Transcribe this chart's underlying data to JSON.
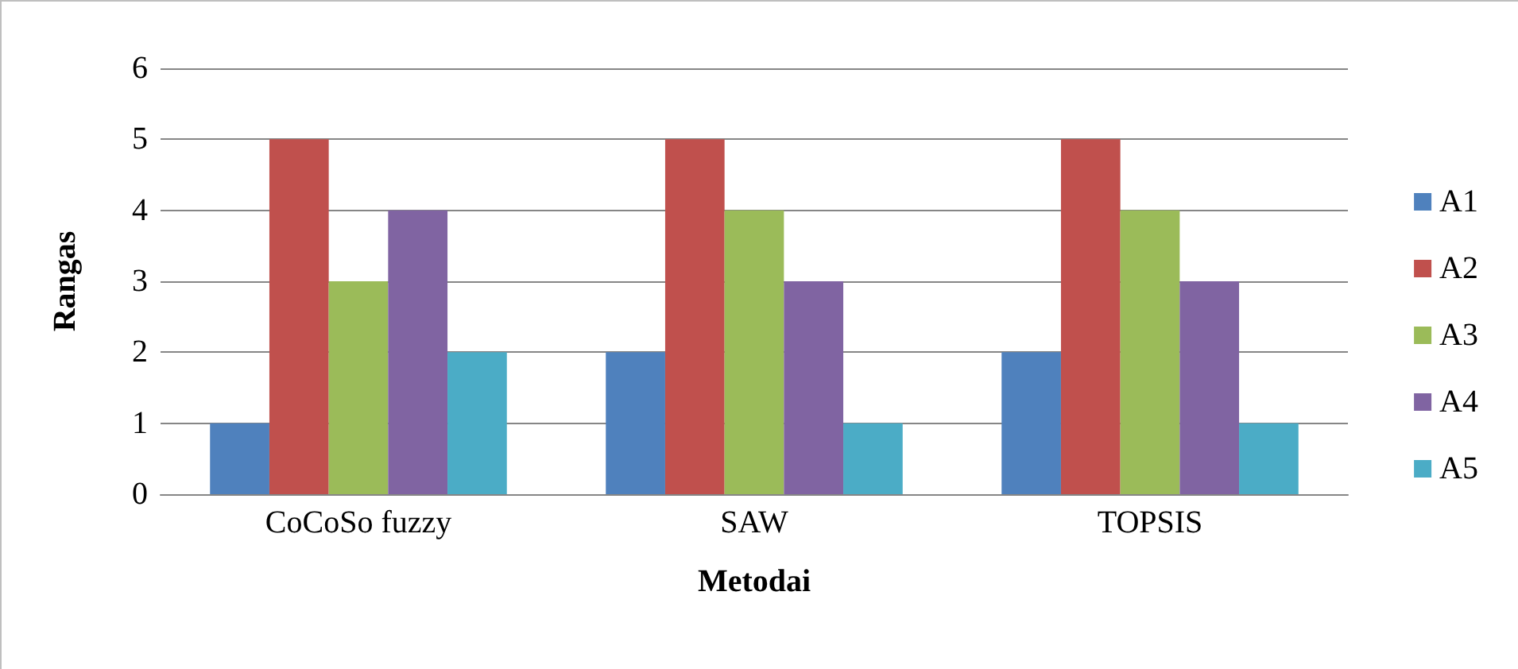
{
  "chart_data": {
    "type": "bar",
    "xlabel": "Metodai",
    "ylabel": "Rangas",
    "categories": [
      "CoCoSo fuzzy",
      "SAW",
      "TOPSIS"
    ],
    "series": [
      {
        "name": "A1",
        "color": "#4f81bd",
        "values": [
          1,
          2,
          2
        ]
      },
      {
        "name": "A2",
        "color": "#c0504d",
        "values": [
          5,
          5,
          5
        ]
      },
      {
        "name": "A3",
        "color": "#9bbb59",
        "values": [
          3,
          4,
          4
        ]
      },
      {
        "name": "A4",
        "color": "#8064a2",
        "values": [
          4,
          3,
          3
        ]
      },
      {
        "name": "A5",
        "color": "#4bacc6",
        "values": [
          2,
          1,
          1
        ]
      }
    ],
    "ylim": [
      0,
      6
    ],
    "yticks": [
      0,
      1,
      2,
      3,
      4,
      5,
      6
    ],
    "grid": "y",
    "legend": "right"
  }
}
